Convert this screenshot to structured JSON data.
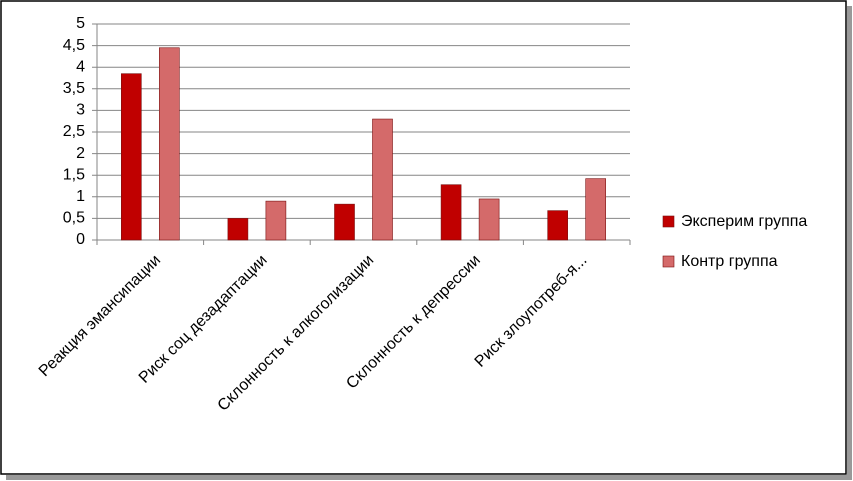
{
  "chart_data": {
    "type": "bar",
    "categories": [
      "Реакция эмансипации",
      "Риск соц дезадаптации",
      "Склонность к алкоголизации",
      "Склонность к депрессии",
      "Риск злоупотреб-я..."
    ],
    "series": [
      {
        "name": "Эксперим группа",
        "color": "#c00000",
        "values": [
          3.85,
          0.5,
          0.83,
          1.28,
          0.68
        ]
      },
      {
        "name": "Контр группа",
        "color": "#d46a6a",
        "values": [
          4.45,
          0.9,
          2.8,
          0.95,
          1.42
        ]
      }
    ],
    "ylim": [
      0,
      5
    ],
    "yticks": [
      0,
      {
        "value": 0.5,
        "label": "0,5"
      },
      1,
      {
        "value": 1.5,
        "label": "1,5"
      },
      2,
      {
        "value": 2.5,
        "label": "2,5"
      },
      3,
      {
        "value": 3.5,
        "label": "3,5"
      },
      4,
      {
        "value": 4.5,
        "label": "4,5"
      },
      5
    ],
    "grid": true,
    "legend": "right"
  }
}
